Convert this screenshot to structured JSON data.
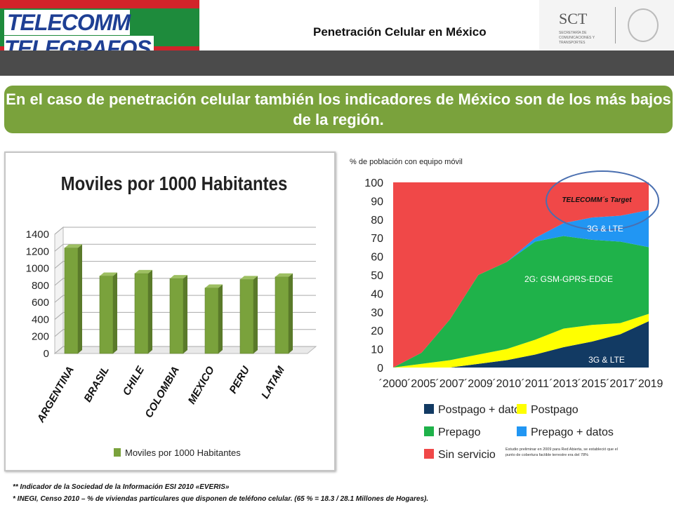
{
  "header": {
    "logo_text": "TELECOMM TELEGRAFOS",
    "title": "Penetración Celular en México",
    "sct_logo": "SCT",
    "sct_subtitle": "SECRETARÍA DE COMUNICACIONES Y TRANSPORTES"
  },
  "banner": {
    "text": "En el caso de penetración celular también los indicadores de México son de los más bajos de la región."
  },
  "colors": {
    "banner": "#7aa23c",
    "bar": "#7aa23c",
    "sin_servicio": "#f04848",
    "prepago": "#1fb24a",
    "prepago_datos": "#2196f3",
    "postpago": "#ffff00",
    "postpago_datos": "#123a63"
  },
  "chart_data": [
    {
      "type": "bar",
      "title": "Moviles por 1000 Habitantes",
      "categories": [
        "ARGENTINA",
        "BRASIL",
        "CHILE",
        "COLOMBIA",
        "MEXICO",
        "PERU",
        "LATAM"
      ],
      "series": [
        {
          "name": "Moviles por 1000 Habitantes",
          "values": [
            1240,
            910,
            940,
            880,
            770,
            870,
            900
          ]
        }
      ],
      "yticks": [
        0,
        200,
        400,
        600,
        800,
        1000,
        1200,
        1400
      ],
      "ylim": [
        0,
        1400
      ],
      "legend_label": "Moviles por 1000 Habitantes",
      "legend": "bottom"
    },
    {
      "type": "area",
      "ylabel": "% de población con equipo móvil",
      "x": [
        "´2000",
        "´2005",
        "´2007",
        "´2009",
        "´2010",
        "´2011",
        "´2013",
        "´2015",
        "´2017",
        "´2019"
      ],
      "yticks": [
        0,
        10,
        20,
        30,
        40,
        50,
        60,
        70,
        80,
        90,
        100
      ],
      "ylim": [
        0,
        100
      ],
      "stacked": true,
      "series": [
        {
          "name": "Postpago + datos",
          "values": [
            0,
            0,
            0,
            2,
            4,
            7,
            11,
            14,
            18,
            25
          ]
        },
        {
          "name": "Postpago",
          "values": [
            0,
            2,
            4,
            5,
            6,
            8,
            10,
            9,
            6,
            4
          ]
        },
        {
          "name": "Prepago",
          "values": [
            0,
            6,
            22,
            43,
            47,
            53,
            50,
            46,
            44,
            36
          ]
        },
        {
          "name": "Prepago + datos",
          "values": [
            0,
            0,
            0,
            0,
            0,
            2,
            7,
            12,
            14,
            20
          ]
        },
        {
          "name": "Sin servicio",
          "values": [
            100,
            92,
            74,
            50,
            43,
            30,
            22,
            19,
            18,
            15
          ]
        }
      ],
      "annotations": {
        "target": "TELECOMM´s Target",
        "label_3g_top": "3G & LTE",
        "label_2g": "2G: GSM-GPRS-EDGE",
        "label_3g_bottom": "3G & LTE",
        "note": "Estudio preliminar en 2009 para Red Abierta, se estableció que el punto de cobertura factible terrestre era del 78%"
      },
      "legend": "bottom"
    }
  ],
  "footnotes": {
    "line1": "** Indicador de la Sociedad de la Información ESI 2010 «EVERIS»",
    "line2": "* INEGI, Censo 2010 – % de viviendas particulares que disponen de teléfono celular. (65 % = 18.3 / 28.1 Millones de Hogares)."
  }
}
